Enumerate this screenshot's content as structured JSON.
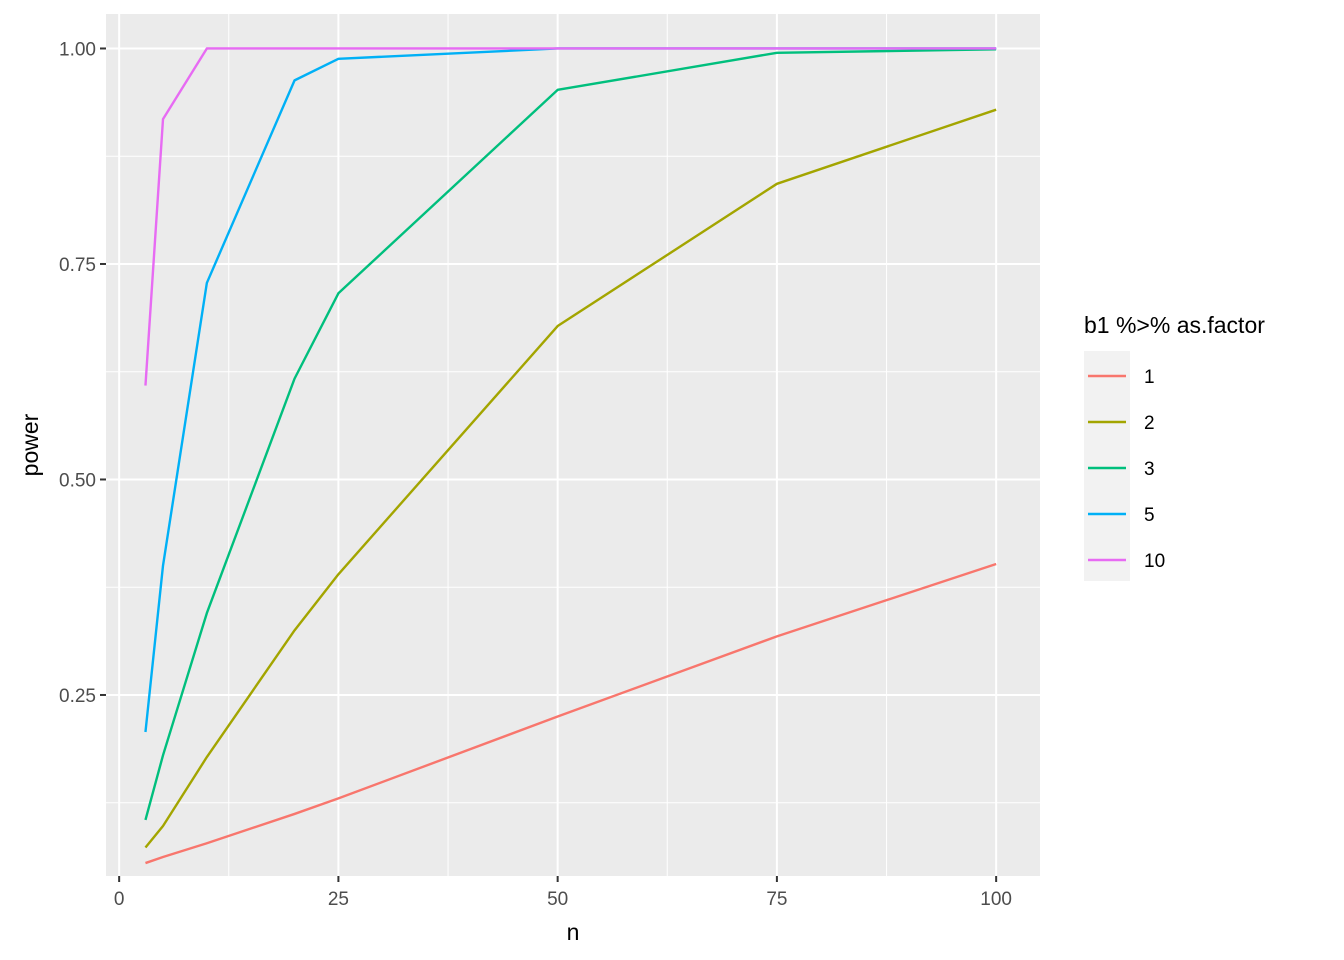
{
  "chart_data": {
    "type": "line",
    "xlabel": "n",
    "ylabel": "power",
    "xlim": [
      -1.5,
      105
    ],
    "ylim": [
      0.04,
      1.04
    ],
    "x_ticks": [
      0,
      25,
      50,
      75,
      100
    ],
    "x_tick_labels": [
      "0",
      "25",
      "50",
      "75",
      "100"
    ],
    "y_ticks": [
      0.25,
      0.5,
      0.75,
      1.0
    ],
    "y_tick_labels": [
      "0.25",
      "0.50",
      "0.75",
      "1.00"
    ],
    "grid": true,
    "legend_position": "right",
    "legend_title": "b1 %>% as.factor",
    "series": [
      {
        "name": "1",
        "color": "#F8766D",
        "x": [
          3,
          5,
          10,
          20,
          25,
          50,
          75,
          100
        ],
        "y": [
          0.055,
          0.062,
          0.078,
          0.112,
          0.13,
          0.225,
          0.318,
          0.402
        ]
      },
      {
        "name": "2",
        "color": "#A3A500",
        "x": [
          3,
          5,
          10,
          20,
          25,
          50,
          75,
          100
        ],
        "y": [
          0.073,
          0.098,
          0.178,
          0.325,
          0.39,
          0.678,
          0.843,
          0.929
        ]
      },
      {
        "name": "3",
        "color": "#00BF7D",
        "x": [
          3,
          5,
          10,
          20,
          25,
          50,
          75,
          100
        ],
        "y": [
          0.105,
          0.18,
          0.345,
          0.617,
          0.716,
          0.952,
          0.995,
          0.999
        ]
      },
      {
        "name": "5",
        "color": "#00B0F6",
        "x": [
          3,
          5,
          10,
          20,
          25,
          50,
          75,
          100
        ],
        "y": [
          0.207,
          0.4,
          0.728,
          0.963,
          0.988,
          1.0,
          1.0,
          1.0
        ]
      },
      {
        "name": "10",
        "color": "#E76BF3",
        "x": [
          3,
          5,
          10,
          20,
          25,
          50,
          75,
          100
        ],
        "y": [
          0.609,
          0.918,
          1.0,
          1.0,
          1.0,
          1.0,
          1.0,
          1.0
        ]
      }
    ]
  }
}
